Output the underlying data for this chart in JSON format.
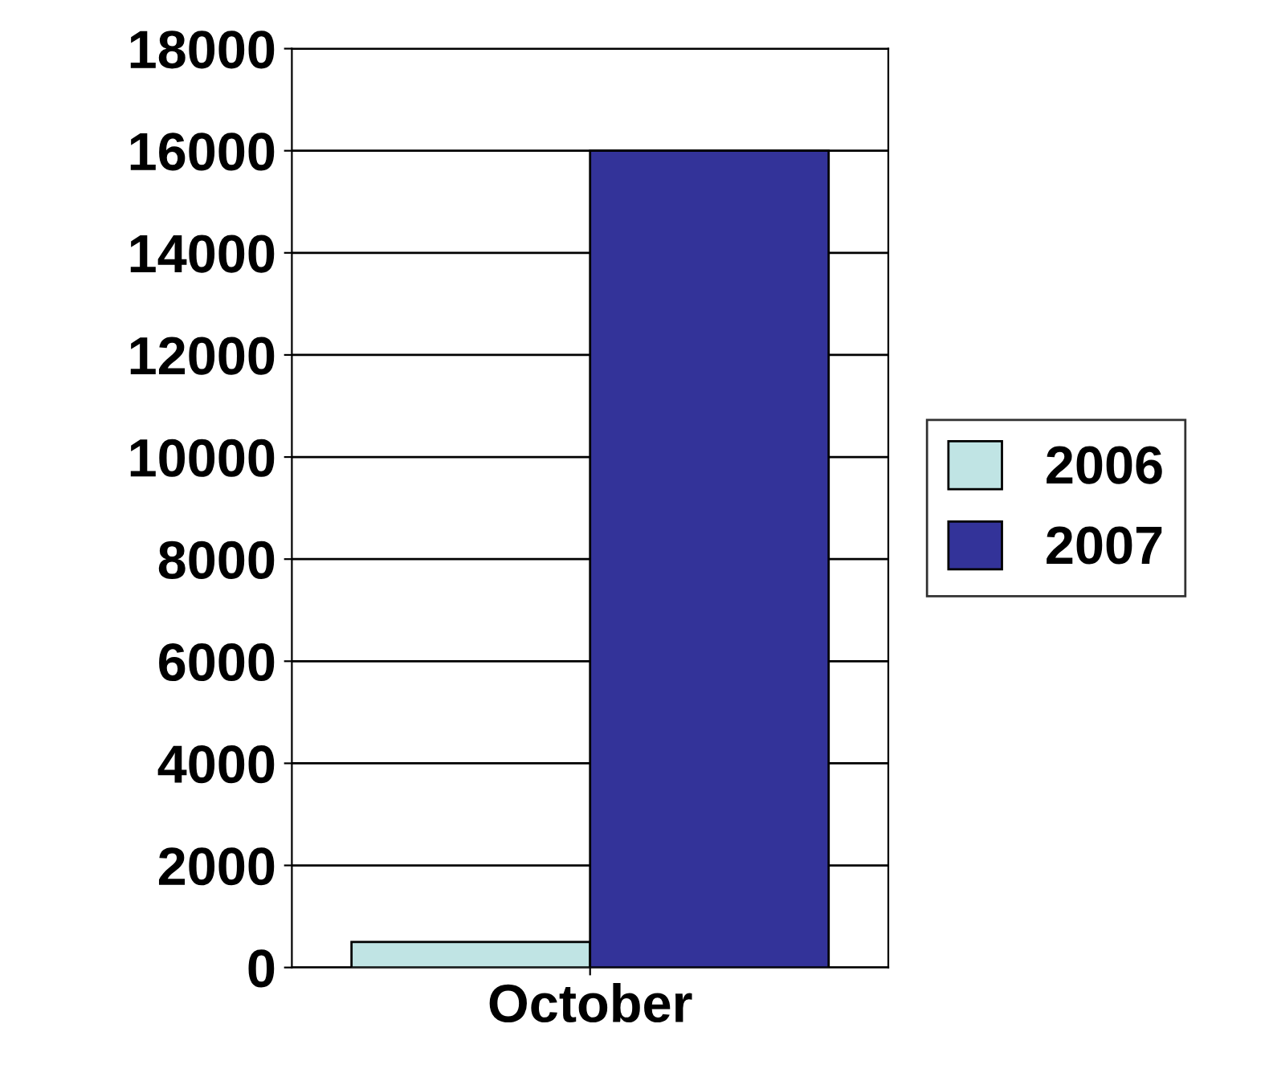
{
  "chart_data": {
    "type": "bar",
    "categories": [
      "October"
    ],
    "series": [
      {
        "name": "2006",
        "color": "#c0e4e4",
        "values": [
          500
        ]
      },
      {
        "name": "2007",
        "color": "#333399",
        "values": [
          16000
        ]
      }
    ],
    "ylim": [
      0,
      18000
    ],
    "yticks": [
      0,
      2000,
      4000,
      6000,
      8000,
      10000,
      12000,
      14000,
      16000,
      18000
    ],
    "grid": "y",
    "legend": "right"
  }
}
